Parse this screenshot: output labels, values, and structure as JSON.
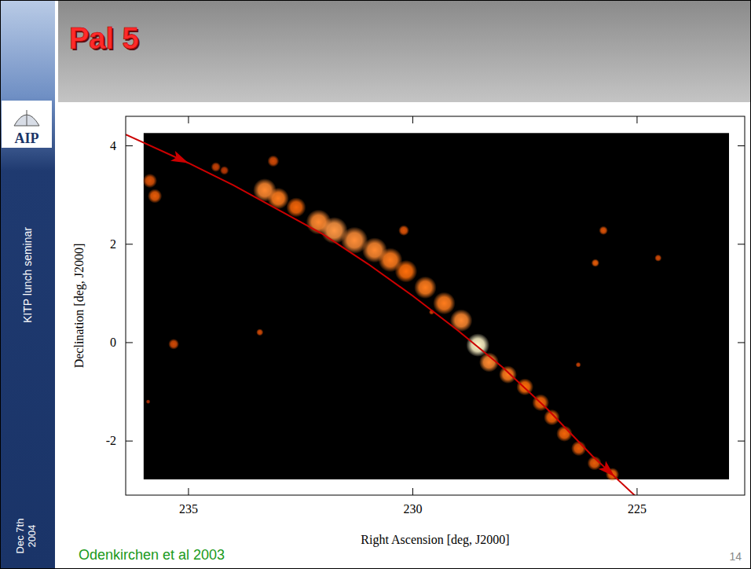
{
  "chart_data": {
    "type": "density_map",
    "title": "Pal 5",
    "x_label": "Right Ascension [deg, J2000]",
    "y_label": "Declination [deg, J2000]",
    "xlim": [
      236.4,
      222.6
    ],
    "ylim": [
      -3.1,
      4.6
    ],
    "xticks": [
      235,
      230,
      225
    ],
    "yticks": [
      -2,
      0,
      2,
      4
    ],
    "field": {
      "x": [
        236.0,
        222.95
      ],
      "y": [
        -2.78,
        4.26
      ]
    },
    "orbit": {
      "color": "#cc0000",
      "line_style": "solid",
      "x": [
        236.4,
        235.0,
        234.0,
        233.0,
        232.0,
        231.0,
        230.0,
        229.0,
        228.0,
        227.0,
        226.0,
        225.0
      ],
      "y": [
        4.23,
        3.65,
        3.2,
        2.7,
        2.2,
        1.6,
        0.95,
        0.25,
        -0.5,
        -1.35,
        -2.3,
        -3.15
      ]
    },
    "density": {
      "x": [
        235.86,
        235.75,
        234.39,
        234.2,
        233.11,
        233.3,
        233.0,
        232.6,
        232.1,
        231.75,
        231.3,
        230.85,
        230.5,
        230.15,
        229.72,
        229.3,
        228.92,
        228.55,
        228.3,
        227.88,
        227.5,
        227.15,
        226.9,
        226.62,
        226.3,
        225.95,
        225.55,
        230.2,
        225.75,
        225.93,
        224.53,
        235.33,
        233.41,
        229.58,
        226.31,
        235.9
      ],
      "y": [
        3.29,
        2.98,
        3.57,
        3.5,
        3.69,
        3.1,
        2.93,
        2.75,
        2.45,
        2.28,
        2.08,
        1.88,
        1.68,
        1.45,
        1.12,
        0.8,
        0.45,
        -0.05,
        -0.4,
        -0.65,
        -0.9,
        -1.22,
        -1.52,
        -1.85,
        -2.15,
        -2.45,
        -2.68,
        2.28,
        2.28,
        1.62,
        1.72,
        -0.03,
        0.21,
        0.62,
        -0.45,
        -1.2
      ],
      "size": [
        0.16,
        0.16,
        0.11,
        0.1,
        0.13,
        0.26,
        0.24,
        0.22,
        0.28,
        0.3,
        0.3,
        0.28,
        0.27,
        0.25,
        0.25,
        0.25,
        0.25,
        0.26,
        0.22,
        0.2,
        0.19,
        0.19,
        0.18,
        0.18,
        0.17,
        0.16,
        0.15,
        0.12,
        0.1,
        0.09,
        0.08,
        0.12,
        0.08,
        0.06,
        0.06,
        0.05
      ],
      "values": [
        0.35,
        0.4,
        0.25,
        0.2,
        0.3,
        0.6,
        0.55,
        0.45,
        0.6,
        0.65,
        0.62,
        0.6,
        0.55,
        0.5,
        0.55,
        0.55,
        0.6,
        1.0,
        0.6,
        0.55,
        0.5,
        0.45,
        0.45,
        0.45,
        0.4,
        0.4,
        0.45,
        0.35,
        0.35,
        0.4,
        0.3,
        0.3,
        0.3,
        0.25,
        0.25,
        0.15
      ]
    }
  },
  "slide": {
    "institute": "AIP",
    "event": "KITP lunch seminar",
    "date": [
      "Dec 7th",
      "2004"
    ],
    "credit": "Odenkirchen et al 2003",
    "page": "14"
  }
}
